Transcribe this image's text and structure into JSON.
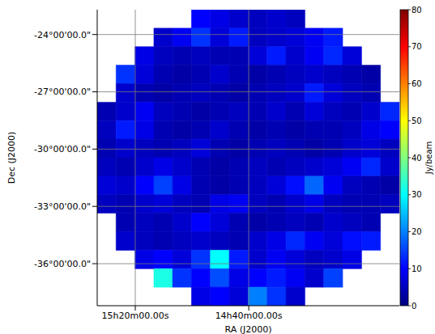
{
  "chart_data": {
    "type": "heatmap",
    "xlabel": "RA (J2000)",
    "ylabel": "Dec (J2000)",
    "xlim": [
      15.557,
      13.782
    ],
    "ylim": [
      -38.2,
      -22.7
    ],
    "xticks": [
      {
        "value": 15.3333,
        "label": "15h20m00.00s"
      },
      {
        "value": 14.6667,
        "label": "14h40m00.00s"
      }
    ],
    "yticks": [
      {
        "value": -36,
        "label": "-36°00'00.0\""
      },
      {
        "value": -33,
        "label": "-33°00'00.0\""
      },
      {
        "value": -30,
        "label": "-30°00'00.0\""
      },
      {
        "value": -27,
        "label": "-27°00'00.0\""
      },
      {
        "value": -24,
        "label": "-24°00'00.0\""
      }
    ],
    "grid": true,
    "x_bins": [
      15.557,
      15.446,
      15.335,
      15.224,
      15.114,
      15.003,
      14.892,
      14.781,
      14.67,
      14.559,
      14.448,
      14.337,
      14.226,
      14.115,
      14.004,
      13.893,
      13.782
    ],
    "y_bins": [
      -22.7,
      -23.669,
      -24.638,
      -25.606,
      -26.575,
      -27.544,
      -28.513,
      -29.481,
      -30.45,
      -31.419,
      -32.388,
      -33.356,
      -34.325,
      -35.294,
      -36.263,
      -37.231,
      -38.2
    ],
    "values": [
      [
        null,
        null,
        null,
        null,
        null,
        10,
        8,
        6,
        5,
        6,
        5,
        null,
        null,
        null,
        null,
        null
      ],
      [
        null,
        null,
        null,
        6,
        9,
        14,
        7,
        12,
        5,
        6,
        7,
        9,
        12,
        null,
        null,
        null
      ],
      [
        null,
        null,
        8,
        5,
        4,
        5,
        4,
        4,
        7,
        12,
        6,
        9,
        13,
        7,
        null,
        null
      ],
      [
        null,
        14,
        7,
        4,
        3,
        4,
        6,
        4,
        3,
        4,
        5,
        6,
        5,
        4,
        3,
        null
      ],
      [
        null,
        6,
        4,
        3,
        4,
        5,
        4,
        3,
        4,
        5,
        6,
        12,
        7,
        5,
        4,
        null
      ],
      [
        4,
        6,
        9,
        5,
        4,
        3,
        4,
        5,
        4,
        6,
        4,
        7,
        5,
        4,
        6,
        13
      ],
      [
        5,
        12,
        8,
        4,
        3,
        4,
        6,
        4,
        3,
        4,
        3,
        4,
        4,
        5,
        8,
        10
      ],
      [
        4,
        6,
        5,
        4,
        5,
        7,
        4,
        3,
        4,
        5,
        4,
        3,
        4,
        6,
        7,
        5
      ],
      [
        5,
        4,
        6,
        8,
        6,
        4,
        3,
        4,
        5,
        4,
        5,
        6,
        7,
        9,
        13,
        6
      ],
      [
        7,
        6,
        10,
        15,
        8,
        4,
        3,
        4,
        5,
        7,
        11,
        18,
        9,
        5,
        4,
        3
      ],
      [
        5,
        4,
        6,
        7,
        5,
        4,
        8,
        9,
        5,
        4,
        6,
        8,
        5,
        4,
        4,
        5
      ],
      [
        null,
        4,
        5,
        4,
        6,
        10,
        7,
        4,
        3,
        4,
        5,
        4,
        6,
        5,
        4,
        null
      ],
      [
        null,
        6,
        5,
        4,
        5,
        6,
        5,
        4,
        6,
        8,
        13,
        9,
        7,
        11,
        12,
        null
      ],
      [
        null,
        null,
        8,
        10,
        7,
        14,
        30,
        12,
        6,
        9,
        7,
        5,
        6,
        8,
        null,
        null
      ],
      [
        null,
        null,
        null,
        32,
        14,
        10,
        16,
        8,
        10,
        12,
        9,
        6,
        15,
        null,
        null,
        null
      ],
      [
        null,
        null,
        null,
        null,
        null,
        8,
        10,
        7,
        20,
        14,
        6,
        null,
        null,
        null,
        null,
        null
      ]
    ],
    "colorbar": {
      "range": [
        0,
        80
      ],
      "ticks": [
        0,
        10,
        20,
        30,
        40,
        50,
        60,
        70,
        80
      ],
      "label": "Jy/beam"
    }
  }
}
